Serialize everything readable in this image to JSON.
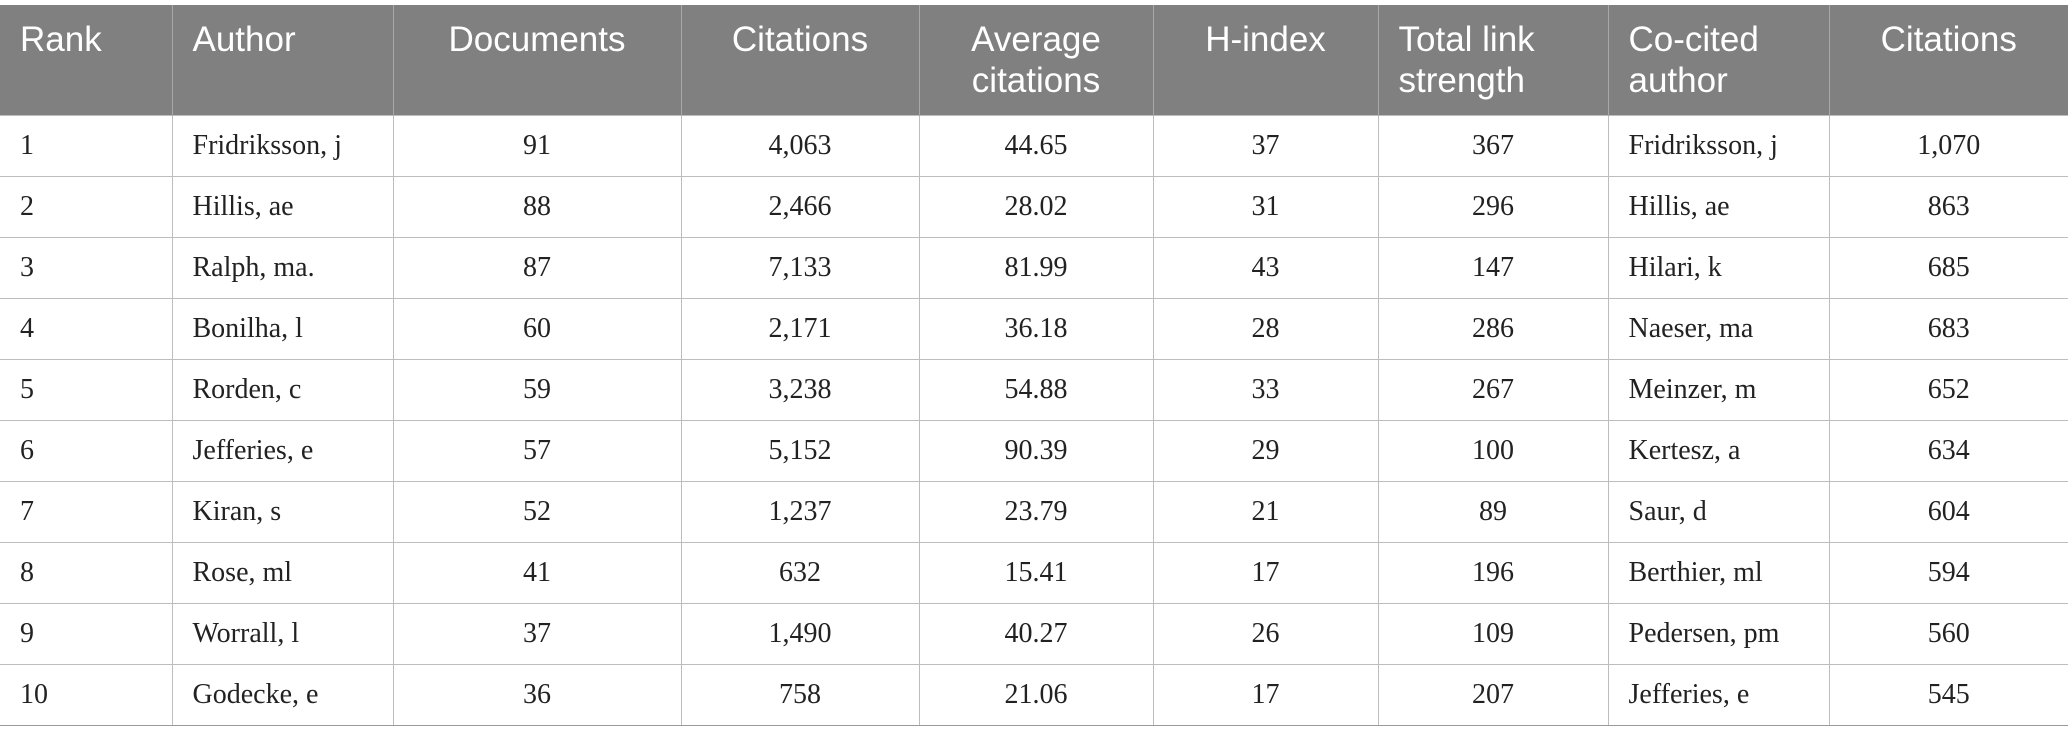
{
  "table": {
    "headers": [
      "Rank",
      "Author",
      "Documents",
      "Citations",
      "Average citations",
      "H-index",
      "Total link strength",
      "Co-cited author",
      "Citations"
    ],
    "rows": [
      [
        "1",
        "Fridriksson, j",
        "91",
        "4,063",
        "44.65",
        "37",
        "367",
        "Fridriksson, j",
        "1,070"
      ],
      [
        "2",
        "Hillis, ae",
        "88",
        "2,466",
        "28.02",
        "31",
        "296",
        "Hillis, ae",
        "863"
      ],
      [
        "3",
        "Ralph, ma.",
        "87",
        "7,133",
        "81.99",
        "43",
        "147",
        "Hilari, k",
        "685"
      ],
      [
        "4",
        "Bonilha, l",
        "60",
        "2,171",
        "36.18",
        "28",
        "286",
        "Naeser, ma",
        "683"
      ],
      [
        "5",
        "Rorden, c",
        "59",
        "3,238",
        "54.88",
        "33",
        "267",
        "Meinzer, m",
        "652"
      ],
      [
        "6",
        "Jefferies, e",
        "57",
        "5,152",
        "90.39",
        "29",
        "100",
        "Kertesz, a",
        "634"
      ],
      [
        "7",
        "Kiran, s",
        "52",
        "1,237",
        "23.79",
        "21",
        "89",
        "Saur, d",
        "604"
      ],
      [
        "8",
        "Rose, ml",
        "41",
        "632",
        "15.41",
        "17",
        "196",
        "Berthier, ml",
        "594"
      ],
      [
        "9",
        "Worrall, l",
        "37",
        "1,490",
        "40.27",
        "26",
        "109",
        "Pedersen, pm",
        "560"
      ],
      [
        "10",
        "Godecke, e",
        "36",
        "758",
        "21.06",
        "17",
        "207",
        "Jefferies, e",
        "545"
      ]
    ]
  }
}
